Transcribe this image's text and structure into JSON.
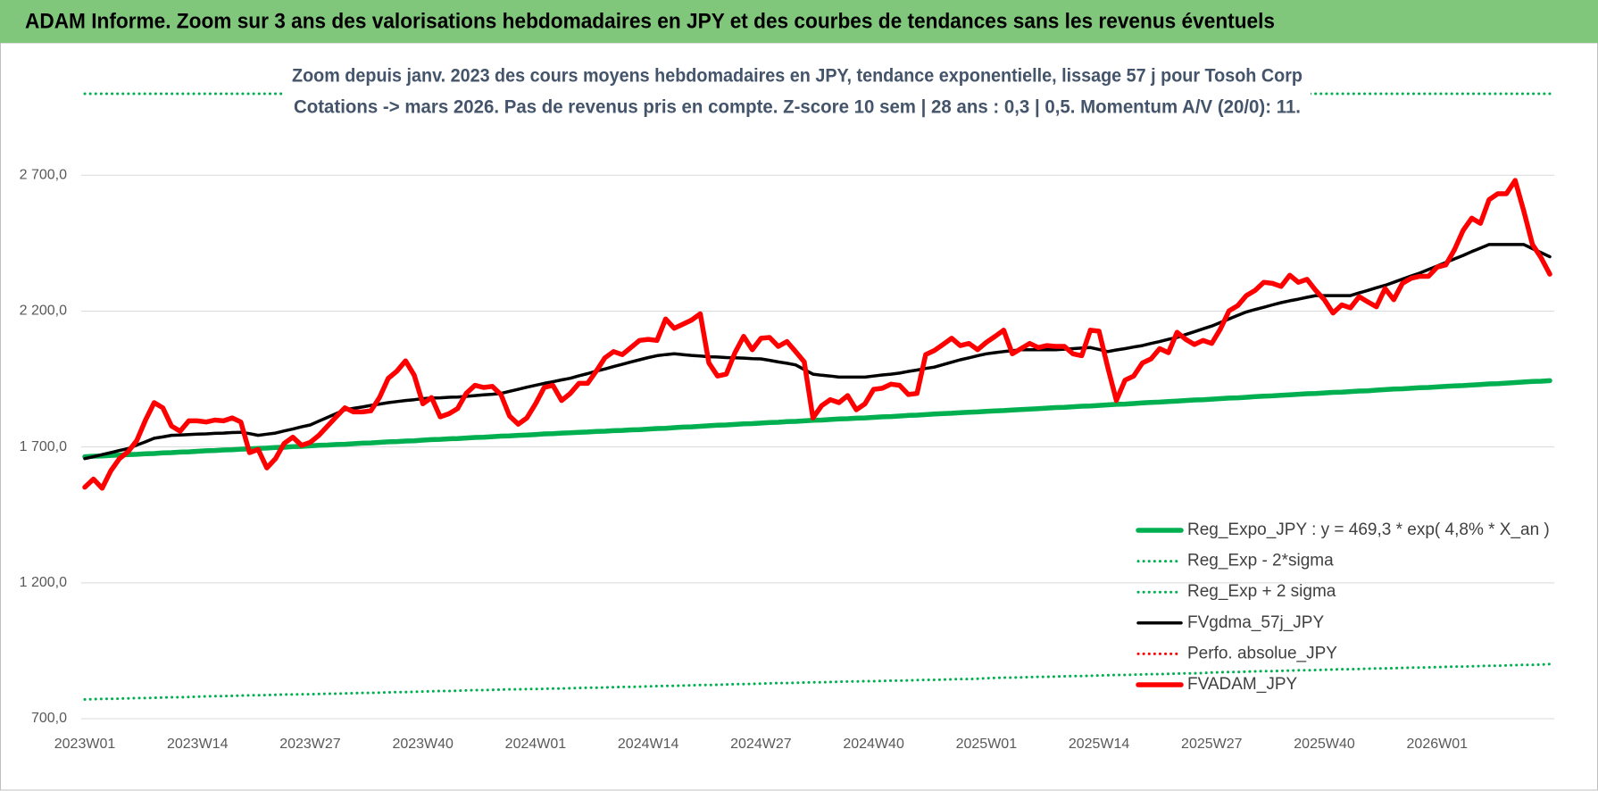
{
  "chart_data": {
    "type": "line",
    "header": "ADAM Informe. Zoom sur 3 ans des valorisations hebdomadaires en JPY et des courbes de tendances sans les revenus éventuels",
    "title": "Zoom depuis janv. 2023 des cours moyens hebdomadaires en JPY, tendance exponentielle, lissage 57 j pour Tosoh Corp",
    "subtitle": "Cotations -> mars 2026. Pas de revenus pris en compte. Z-score 10 sem | 28 ans : 0,3 | 0,5. Momentum A/V (20/0): 11.",
    "ylim": [
      700,
      3000
    ],
    "yticks": [
      {
        "value": 700,
        "label": "700,0"
      },
      {
        "value": 1200,
        "label": "1 200,0"
      },
      {
        "value": 1700,
        "label": "1 700,0"
      },
      {
        "value": 2200,
        "label": "2 200,0"
      },
      {
        "value": 2700,
        "label": "2 700,0"
      }
    ],
    "grid": true,
    "legend": "lower right",
    "categories": [
      "2023W01",
      null,
      null,
      null,
      null,
      null,
      null,
      null,
      null,
      null,
      null,
      null,
      null,
      "2023W14",
      null,
      null,
      null,
      null,
      null,
      null,
      null,
      null,
      null,
      null,
      null,
      null,
      "2023W27",
      null,
      null,
      null,
      null,
      null,
      null,
      null,
      null,
      null,
      null,
      null,
      null,
      "2023W40",
      null,
      null,
      null,
      null,
      null,
      null,
      null,
      null,
      null,
      null,
      null,
      null,
      "2024W01",
      null,
      null,
      null,
      null,
      null,
      null,
      null,
      null,
      null,
      null,
      null,
      null,
      "2024W14",
      null,
      null,
      null,
      null,
      null,
      null,
      null,
      null,
      null,
      null,
      null,
      null,
      "2024W27",
      null,
      null,
      null,
      null,
      null,
      null,
      null,
      null,
      null,
      null,
      null,
      null,
      "2024W40",
      null,
      null,
      null,
      null,
      null,
      null,
      null,
      null,
      null,
      null,
      null,
      null,
      "2025W01",
      null,
      null,
      null,
      null,
      null,
      null,
      null,
      null,
      null,
      null,
      null,
      null,
      "2025W14",
      null,
      null,
      null,
      null,
      null,
      null,
      null,
      null,
      null,
      null,
      null,
      null,
      "2025W27",
      null,
      null,
      null,
      null,
      null,
      null,
      null,
      null,
      null,
      null,
      null,
      null,
      "2025W40",
      null,
      null,
      null,
      null,
      null,
      null,
      null,
      null,
      null,
      null,
      null,
      null,
      "2026W01",
      null,
      null,
      null,
      null,
      null,
      null,
      null,
      null,
      null,
      null,
      null,
      null,
      null
    ],
    "series": [
      {
        "name": "Reg_Expo_JPY : y = 469,3 * exp( 4,8% * X_an )",
        "color": "#00b050",
        "line_style": "thick",
        "values": [
          1664,
          1666,
          1667,
          1669,
          1670,
          1672,
          1673,
          1675,
          1676,
          1678,
          1679,
          1681,
          1682,
          1684,
          1686,
          1687,
          1689,
          1690,
          1692,
          1693,
          1695,
          1696,
          1698,
          1699,
          1701,
          1702,
          1704,
          1706,
          1707,
          1709,
          1710,
          1712,
          1714,
          1715,
          1717,
          1719,
          1720,
          1722,
          1723,
          1725,
          1727,
          1728,
          1730,
          1731,
          1733,
          1735,
          1736,
          1738,
          1740,
          1741,
          1743,
          1744,
          1746,
          1748,
          1749,
          1751,
          1752,
          1754,
          1755,
          1757,
          1758,
          1760,
          1761,
          1763,
          1764,
          1766,
          1768,
          1769,
          1771,
          1773,
          1774,
          1776,
          1778,
          1780,
          1781,
          1783,
          1785,
          1786,
          1788,
          1790,
          1791,
          1793,
          1794,
          1796,
          1798,
          1799,
          1801,
          1803,
          1804,
          1806,
          1807,
          1809,
          1811,
          1812,
          1814,
          1816,
          1817,
          1819,
          1821,
          1823,
          1824,
          1826,
          1828,
          1829,
          1831,
          1833,
          1834,
          1836,
          1838,
          1839,
          1841,
          1843,
          1845,
          1846,
          1848,
          1850,
          1851,
          1853,
          1855,
          1857,
          1858,
          1860,
          1862,
          1864,
          1865,
          1867,
          1869,
          1871,
          1873,
          1874,
          1876,
          1878,
          1880,
          1881,
          1883,
          1885,
          1887,
          1888,
          1890,
          1892,
          1894,
          1896,
          1897,
          1899,
          1901,
          1902,
          1904,
          1906,
          1907,
          1909,
          1911,
          1913,
          1914,
          1916,
          1918,
          1919,
          1921,
          1923,
          1925,
          1926,
          1928,
          1930,
          1932,
          1933,
          1935,
          1937,
          1939,
          1941,
          1942,
          1944
        ]
      },
      {
        "name": "Reg_Exp - 2*sigma",
        "color": "#00b050",
        "line_style": "dotted",
        "values": [
          771,
          772,
          773,
          773,
          774,
          775,
          776,
          776,
          777,
          778,
          779,
          779,
          780,
          781,
          782,
          783,
          783,
          784,
          785,
          786,
          786,
          787,
          788,
          789,
          789,
          790,
          790,
          791,
          792,
          792,
          793,
          794,
          795,
          795,
          796,
          797,
          798,
          798,
          799,
          800,
          801,
          802,
          802,
          803,
          804,
          805,
          805,
          806,
          807,
          808,
          808,
          809,
          809,
          810,
          811,
          811,
          812,
          813,
          814,
          814,
          815,
          816,
          817,
          817,
          818,
          819,
          820,
          821,
          821,
          822,
          823,
          824,
          824,
          825,
          826,
          827,
          827,
          828,
          829,
          830,
          831,
          831,
          832,
          833,
          834,
          834,
          835,
          836,
          837,
          837,
          838,
          838,
          839,
          840,
          840,
          841,
          842,
          843,
          843,
          844,
          845,
          846,
          846,
          847,
          849,
          850,
          851,
          851,
          852,
          853,
          854,
          854,
          855,
          856,
          857,
          857,
          858,
          859,
          860,
          861,
          861,
          862,
          863,
          864,
          864,
          865,
          866,
          867,
          867,
          868,
          870,
          871,
          872,
          872,
          873,
          874,
          875,
          875,
          876,
          877,
          878,
          878,
          879,
          880,
          881,
          882,
          882,
          883,
          884,
          885,
          885,
          886,
          887,
          888,
          888,
          889,
          890,
          891,
          892,
          892,
          893,
          894,
          895,
          895,
          896,
          897,
          898,
          898,
          899,
          901
        ]
      },
      {
        "name": "Reg_Exp + 2 sigma",
        "color": "#00b050",
        "line_style": "dotted",
        "values": [
          3000,
          3000,
          3000,
          3000,
          3000,
          3000,
          3000,
          3000,
          3000,
          3000,
          3000,
          3000,
          3000,
          3000,
          3000,
          3000,
          3000,
          3000,
          3000,
          3000,
          3000,
          3000,
          3000,
          3000,
          3000,
          3000,
          3000,
          3000,
          3000,
          3000,
          3000,
          3000,
          3000,
          3000,
          3000,
          3000,
          3000,
          3000,
          3000,
          3000,
          3000,
          3000,
          3000,
          3000,
          3000,
          3000,
          3000,
          3000,
          3000,
          3000,
          3000,
          3000,
          3000,
          3000,
          3000,
          3000,
          3000,
          3000,
          3000,
          3000,
          3000,
          3000,
          3000,
          3000,
          3000,
          3000,
          3000,
          3000,
          3000,
          3000,
          3000,
          3000,
          3000,
          3000,
          3000,
          3000,
          3000,
          3000,
          3000,
          3000,
          3000,
          3000,
          3000,
          3000,
          3000,
          3000,
          3000,
          3000,
          3000,
          3000,
          3000,
          3000,
          3000,
          3000,
          3000,
          3000,
          3000,
          3000,
          3000,
          3000,
          3000,
          3000,
          3000,
          3000,
          3000,
          3000,
          3000,
          3000,
          3000,
          3000,
          3000,
          3000,
          3000,
          3000,
          3000,
          3000,
          3000,
          3000,
          3000,
          3000,
          3000,
          3000,
          3000,
          3000,
          3000,
          3000,
          3000,
          3000,
          3000,
          3000,
          3000,
          3000,
          3000,
          3000,
          3000,
          3000,
          3000,
          3000,
          3000,
          3000,
          3000,
          3000,
          3000,
          3000,
          3000,
          3000,
          3000,
          3000,
          3000,
          3000,
          3000,
          3000,
          3000,
          3000,
          3000,
          3000,
          3000,
          3000,
          3000,
          3000,
          3000,
          3000,
          3000,
          3000,
          3000,
          3000,
          3000,
          3000,
          3000,
          3000
        ]
      },
      {
        "name": "FVgdma_57j_JPY",
        "color": "#000000",
        "line_style": "solid",
        "values": [
          1657,
          1664,
          1672,
          1679,
          1687,
          1694,
          1707,
          1719,
          1732,
          1737,
          1743,
          1744,
          1746,
          1747,
          1748,
          1750,
          1751,
          1753,
          1754,
          1749,
          1743,
          1747,
          1751,
          1759,
          1766,
          1774,
          1781,
          1795,
          1809,
          1823,
          1837,
          1842,
          1847,
          1853,
          1858,
          1863,
          1867,
          1871,
          1874,
          1878,
          1880,
          1881,
          1883,
          1884,
          1886,
          1889,
          1892,
          1894,
          1897,
          1905,
          1912,
          1920,
          1927,
          1934,
          1940,
          1947,
          1953,
          1962,
          1970,
          1979,
          1987,
          1996,
          2004,
          2013,
          2021,
          2029,
          2036,
          2040,
          2043,
          2040,
          2037,
          2035,
          2032,
          2031,
          2029,
          2028,
          2027,
          2025,
          2024,
          2019,
          2013,
          2008,
          2002,
          1985,
          1968,
          1964,
          1961,
          1957,
          1957,
          1957,
          1957,
          1961,
          1965,
          1968,
          1972,
          1978,
          1983,
          1989,
          1994,
          2003,
          2012,
          2021,
          2028,
          2036,
          2043,
          2047,
          2051,
          2054,
          2058,
          2058,
          2058,
          2058,
          2058,
          2060,
          2062,
          2064,
          2066,
          2059,
          2051,
          2057,
          2062,
          2068,
          2073,
          2081,
          2088,
          2096,
          2103,
          2114,
          2124,
          2135,
          2145,
          2158,
          2171,
          2184,
          2197,
          2206,
          2214,
          2223,
          2231,
          2238,
          2244,
          2251,
          2257,
          2257,
          2257,
          2257,
          2257,
          2267,
          2276,
          2286,
          2295,
          2306,
          2318,
          2329,
          2340,
          2353,
          2366,
          2379,
          2392,
          2405,
          2419,
          2432,
          2445,
          2445,
          2445,
          2445,
          2445,
          2430,
          2415,
          2400
        ]
      },
      {
        "name": "Perfo. absolue_JPY",
        "color": "#ff0000",
        "line_style": "dotted"
      },
      {
        "name": "FVADAM_JPY",
        "color": "#ff0000",
        "line_style": "thick",
        "values": [
          1552,
          1582,
          1548,
          1612,
          1657,
          1683,
          1724,
          1799,
          1863,
          1844,
          1777,
          1758,
          1796,
          1796,
          1792,
          1799,
          1796,
          1807,
          1792,
          1679,
          1691,
          1623,
          1657,
          1713,
          1736,
          1706,
          1717,
          1743,
          1777,
          1811,
          1844,
          1829,
          1829,
          1833,
          1882,
          1953,
          1979,
          2017,
          1964,
          1859,
          1882,
          1811,
          1822,
          1841,
          1897,
          1927,
          1919,
          1923,
          1893,
          1814,
          1784,
          1807,
          1859,
          1919,
          1927,
          1871,
          1897,
          1934,
          1934,
          1979,
          2028,
          2051,
          2040,
          2066,
          2092,
          2096,
          2092,
          2171,
          2137,
          2152,
          2167,
          2190,
          2009,
          1961,
          1968,
          2047,
          2107,
          2058,
          2100,
          2103,
          2070,
          2088,
          2051,
          2013,
          1807,
          1852,
          1874,
          1863,
          1889,
          1837,
          1859,
          1912,
          1916,
          1931,
          1927,
          1893,
          1897,
          2040,
          2055,
          2077,
          2100,
          2073,
          2081,
          2058,
          2085,
          2107,
          2130,
          2043,
          2062,
          2081,
          2066,
          2073,
          2070,
          2070,
          2043,
          2036,
          2130,
          2126,
          1994,
          1871,
          1946,
          1961,
          2009,
          2024,
          2062,
          2047,
          2122,
          2096,
          2077,
          2092,
          2081,
          2134,
          2201,
          2220,
          2257,
          2276,
          2306,
          2302,
          2291,
          2332,
          2306,
          2317,
          2276,
          2242,
          2193,
          2223,
          2212,
          2253,
          2234,
          2216,
          2283,
          2242,
          2302,
          2321,
          2328,
          2328,
          2362,
          2370,
          2426,
          2497,
          2542,
          2523,
          2610,
          2632,
          2632,
          2681,
          2568,
          2445,
          2396,
          2336
        ]
      }
    ]
  }
}
